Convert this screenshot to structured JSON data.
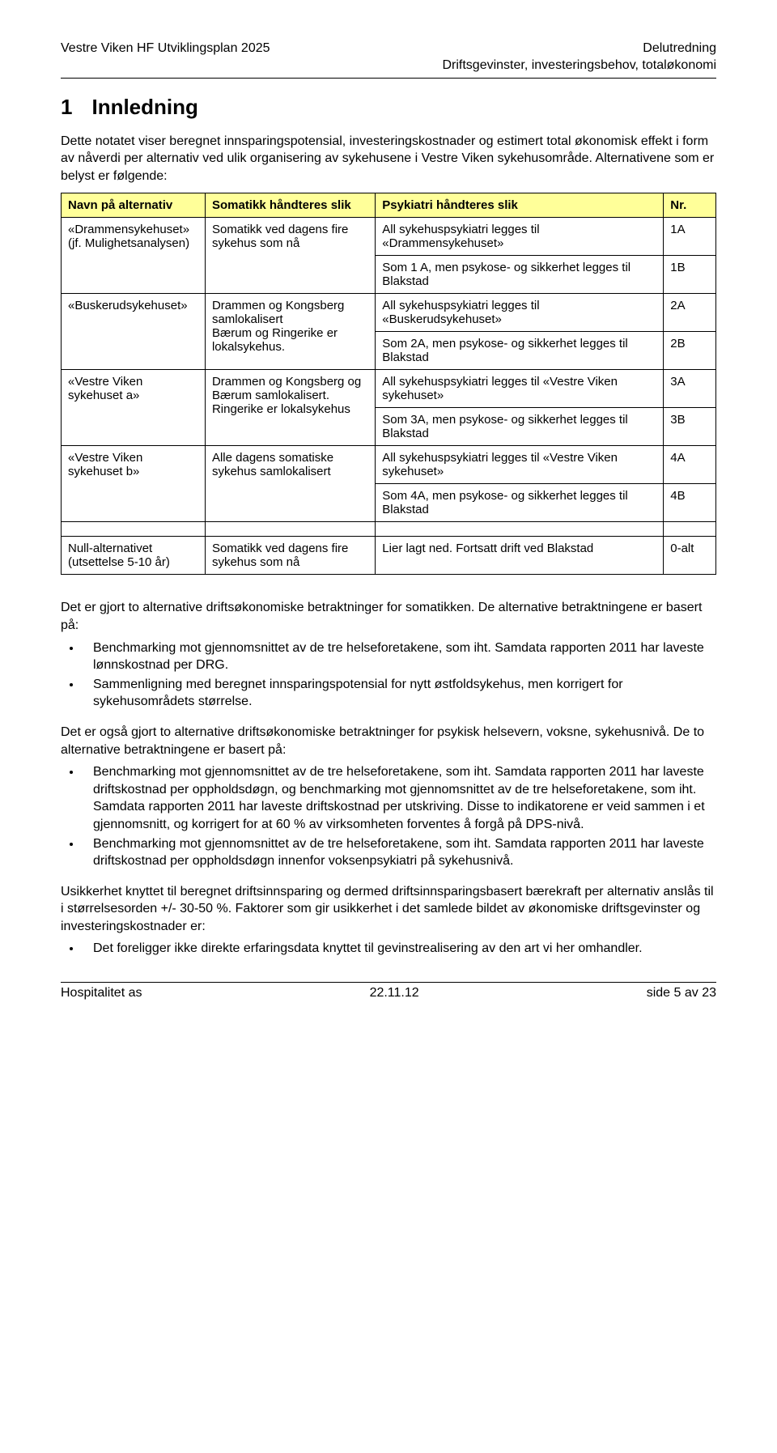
{
  "header": {
    "left": "Vestre Viken HF Utviklingsplan 2025",
    "right_line1": "Delutredning",
    "right_line2": "Driftsgevinster, investeringsbehov, totaløkonomi"
  },
  "h1": {
    "num": "1",
    "text": "Innledning"
  },
  "intro": "Dette notatet viser beregnet innsparingspotensial, investeringskostnader og estimert total økonomisk effekt i form av nåverdi per alternativ ved ulik organisering av sykehusene i Vestre Viken sykehusområde. Alternativene som er belyst er følgende:",
  "table": {
    "headers": {
      "name": "Navn på alternativ",
      "som": "Somatikk håndteres slik",
      "psy": "Psykiatri håndteres slik",
      "nr": "Nr."
    },
    "rows": [
      {
        "name": "«Drammensykehuset» (jf. Mulighetsanalysen)",
        "som": "Somatikk ved dagens fire sykehus som nå",
        "alts": [
          {
            "psy": "All sykehuspsykiatri legges til «Drammensykehuset»",
            "nr": "1A"
          },
          {
            "psy": "Som 1 A, men psykose- og sikkerhet legges til Blakstad",
            "nr": "1B"
          }
        ]
      },
      {
        "name": "«Buskerudsykehuset»",
        "som": "Drammen og Kongsberg samlokalisert\nBærum og Ringerike er lokalsykehus.",
        "alts": [
          {
            "psy": "All sykehuspsykiatri legges til «Buskerudsykehuset»",
            "nr": "2A"
          },
          {
            "psy": "Som 2A, men psykose- og sikkerhet legges til Blakstad",
            "nr": "2B"
          }
        ]
      },
      {
        "name": "«Vestre Viken sykehuset a»",
        "som": "Drammen og Kongsberg og Bærum samlokalisert.\nRingerike er lokalsykehus",
        "alts": [
          {
            "psy": "All sykehuspsykiatri legges til «Vestre Viken sykehuset»",
            "nr": "3A"
          },
          {
            "psy": "Som 3A, men psykose- og sikkerhet legges til Blakstad",
            "nr": "3B"
          }
        ]
      },
      {
        "name": "«Vestre Viken sykehuset b»",
        "som": "Alle dagens somatiske sykehus samlokalisert",
        "alts": [
          {
            "psy": "All sykehuspsykiatri legges til «Vestre Viken sykehuset»",
            "nr": "4A"
          },
          {
            "psy": "Som 4A, men psykose- og sikkerhet legges til Blakstad",
            "nr": "4B"
          }
        ]
      }
    ],
    "null_row": {
      "name": "Null-alternativet\n(utsettelse 5-10 år)",
      "som": "Somatikk ved dagens fire sykehus som nå",
      "psy": "Lier lagt ned. Fortsatt drift ved Blakstad",
      "nr": "0-alt"
    }
  },
  "para1": "Det er gjort to alternative driftsøkonomiske betraktninger for somatikken. De alternative betraktningene er basert på:",
  "bullets1": [
    "Benchmarking mot gjennomsnittet av de tre helseforetakene, som iht. Samdata rapporten 2011 har laveste lønnskostnad per DRG.",
    "Sammenligning med beregnet innsparingspotensial for nytt østfoldsykehus, men korrigert for sykehusområdets størrelse."
  ],
  "para2": "Det er også gjort to alternative driftsøkonomiske betraktninger for psykisk helsevern, voksne, sykehusnivå. De to alternative betraktningene er basert på:",
  "bullets2": [
    "Benchmarking mot gjennomsnittet av de tre helseforetakene, som iht. Samdata rapporten 2011 har laveste driftskostnad per oppholdsdøgn, og benchmarking mot gjennomsnittet av de tre helseforetakene, som iht. Samdata rapporten 2011 har laveste driftskostnad per utskriving. Disse to indikatorene er veid sammen i et gjennomsnitt, og korrigert for at 60 % av virksomheten forventes å forgå på DPS-nivå.",
    "Benchmarking mot gjennomsnittet av de tre helseforetakene, som iht. Samdata rapporten 2011 har laveste driftskostnad per oppholdsdøgn innenfor voksenpsykiatri på sykehusnivå."
  ],
  "para3": "Usikkerhet knyttet til beregnet driftsinnsparing og dermed driftsinnsparingsbasert bærekraft per alternativ anslås til i størrelsesorden +/- 30-50 %. Faktorer som gir usikkerhet i det samlede bildet av økonomiske driftsgevinster og investeringskostnader er:",
  "bullets3": [
    "Det foreligger ikke direkte erfaringsdata knyttet til gevinstrealisering av den art vi her omhandler."
  ],
  "footer": {
    "left": "Hospitalitet as",
    "center": "22.11.12",
    "right": "side 5 av 23"
  }
}
